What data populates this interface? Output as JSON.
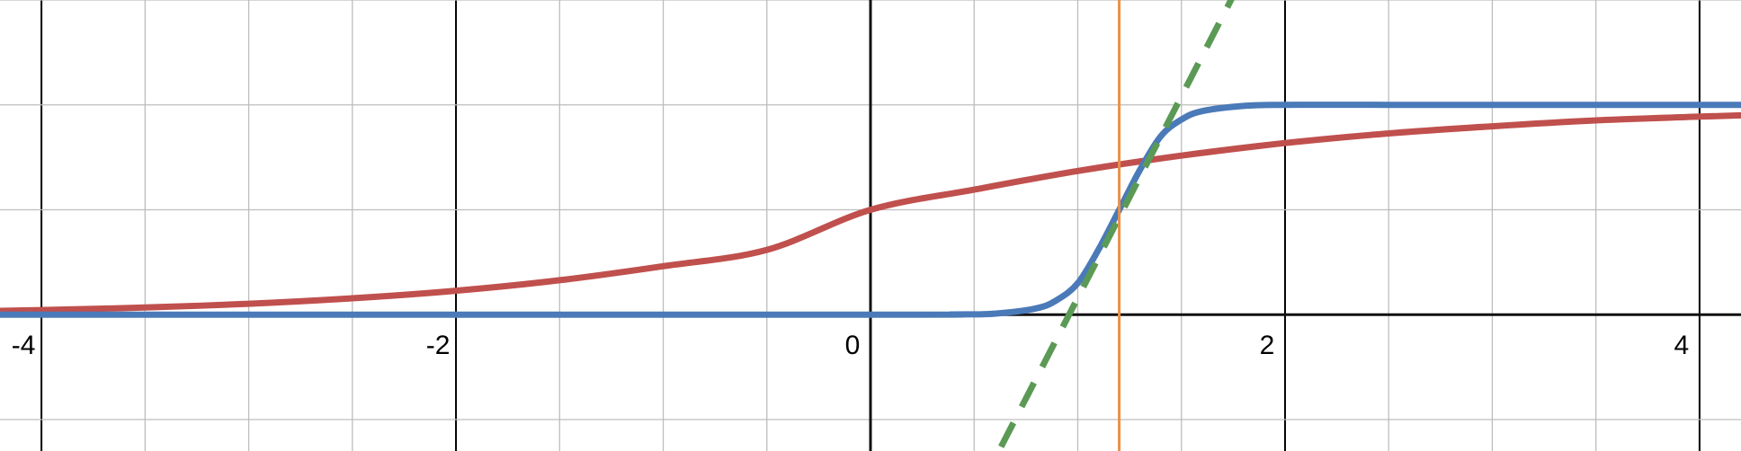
{
  "chart_data": {
    "type": "line",
    "title": "",
    "xlabel": "",
    "ylabel": "",
    "xlim": [
      -4.2,
      4.2
    ],
    "ylim": [
      -0.65,
      1.5
    ],
    "grid": true,
    "minor_grid_step": 0.5,
    "major_grid_step": 2,
    "x_tick_labels": [
      "-4",
      "-2",
      "0",
      "2",
      "4"
    ],
    "x_tick_values": [
      -4,
      -2,
      0,
      2,
      4
    ],
    "series": [
      {
        "kind": "logistic",
        "color": "#c0504d",
        "style": "solid",
        "x": [
          -4.2,
          -4,
          -3.5,
          -3,
          -2.5,
          -2,
          -1.5,
          -1,
          -0.5,
          0,
          0.5,
          1,
          1.5,
          2,
          2.5,
          3,
          3.5,
          4,
          4.2
        ],
        "y": [
          0.018,
          0.022,
          0.034,
          0.052,
          0.078,
          0.114,
          0.164,
          0.231,
          0.309,
          0.5,
          0.596,
          0.685,
          0.758,
          0.818,
          0.864,
          0.898,
          0.926,
          0.944,
          0.95
        ]
      },
      {
        "kind": "steep-logistic",
        "color": "#4a7ab8",
        "style": "solid",
        "x": [
          -4.2,
          0,
          0.4,
          0.6,
          0.8,
          0.9,
          1.0,
          1.1,
          1.2,
          1.3,
          1.4,
          1.5,
          1.6,
          1.8,
          2.0,
          2.5,
          4.2
        ],
        "y": [
          0,
          0,
          0.001,
          0.005,
          0.03,
          0.07,
          0.15,
          0.31,
          0.5,
          0.69,
          0.85,
          0.93,
          0.97,
          0.995,
          1.0,
          1.0,
          1.0
        ]
      },
      {
        "kind": "tangent-line",
        "color": "#5b9a55",
        "style": "dashed",
        "x": [
          0.63,
          1.75
        ],
        "y": [
          -0.63,
          1.52
        ]
      },
      {
        "kind": "vertical-line",
        "color": "#e8914a",
        "style": "solid",
        "x_value": 1.2
      }
    ]
  }
}
